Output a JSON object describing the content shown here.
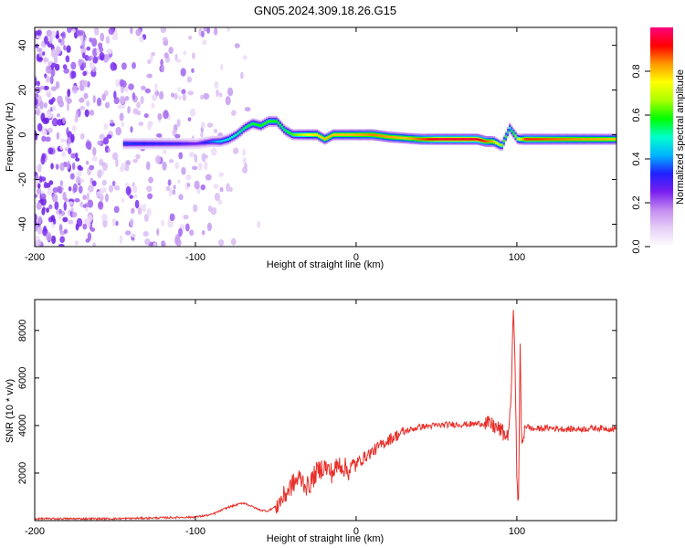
{
  "title": "GN05.2024.309.18.26.G15",
  "colors": {
    "snr_line": "#e8302a",
    "frame": "#000000"
  },
  "chart_data": [
    {
      "type": "heatmap",
      "xlabel": "Height of straight line (km)",
      "ylabel": "Frequency (Hz)",
      "xlim": [
        -200,
        162
      ],
      "ylim": [
        -50,
        48
      ],
      "x_ticks": [
        -200,
        -100,
        0,
        100
      ],
      "y_ticks": [
        -40,
        -20,
        0,
        20,
        40
      ],
      "x_tick_labels": [
        "-200",
        "-100",
        "0",
        "100"
      ],
      "y_tick_labels": [
        "-40",
        "-20",
        "0",
        "20",
        "40"
      ],
      "colorbar": {
        "label": "Normalized spectral amplitude",
        "range": [
          0,
          1
        ],
        "ticks": [
          0.0,
          0.2,
          0.4,
          0.6,
          0.8
        ],
        "tick_labels": [
          "0.0",
          "0.2",
          "0.4",
          "0.6",
          "0.8"
        ],
        "colormap": [
          "#ffffff",
          "#e6cff7",
          "#c48cf0",
          "#7a1ff0",
          "#2020ff",
          "#00b4ff",
          "#00ffcc",
          "#00ff00",
          "#aaff00",
          "#ffff00",
          "#ff9900",
          "#ff0000",
          "#ff0080"
        ]
      },
      "ridge": [
        {
          "x": -145,
          "y": -4
        },
        {
          "x": -130,
          "y": -4
        },
        {
          "x": -120,
          "y": -4
        },
        {
          "x": -110,
          "y": -4
        },
        {
          "x": -100,
          "y": -4
        },
        {
          "x": -90,
          "y": -3
        },
        {
          "x": -85,
          "y": -3
        },
        {
          "x": -80,
          "y": -2
        },
        {
          "x": -75,
          "y": 0
        },
        {
          "x": -70,
          "y": 3
        },
        {
          "x": -65,
          "y": 5
        },
        {
          "x": -60,
          "y": 4
        },
        {
          "x": -55,
          "y": 6
        },
        {
          "x": -50,
          "y": 6
        },
        {
          "x": -45,
          "y": 2
        },
        {
          "x": -40,
          "y": 0
        },
        {
          "x": -30,
          "y": 0
        },
        {
          "x": -25,
          "y": 0
        },
        {
          "x": -20,
          "y": -2
        },
        {
          "x": -15,
          "y": 0
        },
        {
          "x": -10,
          "y": 0
        },
        {
          "x": 0,
          "y": 0
        },
        {
          "x": 10,
          "y": 0
        },
        {
          "x": 20,
          "y": -1
        },
        {
          "x": 40,
          "y": -2
        },
        {
          "x": 60,
          "y": -2
        },
        {
          "x": 70,
          "y": -2
        },
        {
          "x": 75,
          "y": -2
        },
        {
          "x": 80,
          "y": -3
        },
        {
          "x": 85,
          "y": -3
        },
        {
          "x": 90,
          "y": -5
        },
        {
          "x": 95,
          "y": 3
        },
        {
          "x": 100,
          "y": -2
        },
        {
          "x": 110,
          "y": -2
        },
        {
          "x": 120,
          "y": -2
        },
        {
          "x": 140,
          "y": -2
        },
        {
          "x": 162,
          "y": -2
        }
      ],
      "ridge_amplitude": [
        {
          "x": -145,
          "a": 0.35
        },
        {
          "x": -110,
          "a": 0.3
        },
        {
          "x": -100,
          "a": 0.25
        },
        {
          "x": -85,
          "a": 0.45
        },
        {
          "x": -70,
          "a": 0.55
        },
        {
          "x": -55,
          "a": 0.6
        },
        {
          "x": -45,
          "a": 0.55
        },
        {
          "x": -30,
          "a": 0.75
        },
        {
          "x": -20,
          "a": 0.8
        },
        {
          "x": -5,
          "a": 0.8
        },
        {
          "x": 10,
          "a": 0.85
        },
        {
          "x": 30,
          "a": 0.8
        },
        {
          "x": 50,
          "a": 0.95
        },
        {
          "x": 75,
          "a": 0.95
        },
        {
          "x": 85,
          "a": 0.8
        },
        {
          "x": 95,
          "a": 0.5
        },
        {
          "x": 105,
          "a": 0.9
        },
        {
          "x": 130,
          "a": 0.85
        },
        {
          "x": 162,
          "a": 0.8
        }
      ],
      "noise_region": [
        -200,
        -60
      ]
    },
    {
      "type": "line",
      "xlabel": "Height of straight line (km)",
      "ylabel": "SNR (10 * v/v)",
      "xlim": [
        -200,
        162
      ],
      "ylim": [
        0,
        9300
      ],
      "x_ticks": [
        -200,
        -100,
        0,
        100
      ],
      "y_ticks": [
        2000,
        4000,
        6000,
        8000
      ],
      "x_tick_labels": [
        "-200",
        "-100",
        "0",
        "100"
      ],
      "y_tick_labels": [
        "2000",
        "4000",
        "6000",
        "8000"
      ],
      "series": [
        {
          "points": [
            {
              "x": -200,
              "y": 80
            },
            {
              "x": -150,
              "y": 80
            },
            {
              "x": -120,
              "y": 120
            },
            {
              "x": -100,
              "y": 150
            },
            {
              "x": -90,
              "y": 250
            },
            {
              "x": -80,
              "y": 550
            },
            {
              "x": -70,
              "y": 750
            },
            {
              "x": -65,
              "y": 600
            },
            {
              "x": -60,
              "y": 450
            },
            {
              "x": -55,
              "y": 400
            },
            {
              "x": -50,
              "y": 600
            },
            {
              "x": -45,
              "y": 1000
            },
            {
              "x": -40,
              "y": 1500
            },
            {
              "x": -35,
              "y": 1800
            },
            {
              "x": -30,
              "y": 1400
            },
            {
              "x": -25,
              "y": 2000
            },
            {
              "x": -20,
              "y": 2300
            },
            {
              "x": -15,
              "y": 2000
            },
            {
              "x": -10,
              "y": 2400
            },
            {
              "x": -5,
              "y": 2100
            },
            {
              "x": 0,
              "y": 2400
            },
            {
              "x": 10,
              "y": 2900
            },
            {
              "x": 20,
              "y": 3400
            },
            {
              "x": 30,
              "y": 3750
            },
            {
              "x": 40,
              "y": 3950
            },
            {
              "x": 50,
              "y": 4000
            },
            {
              "x": 60,
              "y": 4050
            },
            {
              "x": 70,
              "y": 4050
            },
            {
              "x": 80,
              "y": 4100
            },
            {
              "x": 85,
              "y": 4000
            },
            {
              "x": 90,
              "y": 3800
            },
            {
              "x": 94,
              "y": 3500
            },
            {
              "x": 96,
              "y": 4500
            },
            {
              "x": 98,
              "y": 9000
            },
            {
              "x": 99,
              "y": 6500
            },
            {
              "x": 100,
              "y": 1500
            },
            {
              "x": 101,
              "y": 800
            },
            {
              "x": 102,
              "y": 7500
            },
            {
              "x": 103,
              "y": 3000
            },
            {
              "x": 105,
              "y": 4000
            },
            {
              "x": 110,
              "y": 3850
            },
            {
              "x": 120,
              "y": 3900
            },
            {
              "x": 130,
              "y": 3850
            },
            {
              "x": 140,
              "y": 3850
            },
            {
              "x": 150,
              "y": 3900
            },
            {
              "x": 162,
              "y": 3850
            }
          ]
        }
      ]
    }
  ]
}
